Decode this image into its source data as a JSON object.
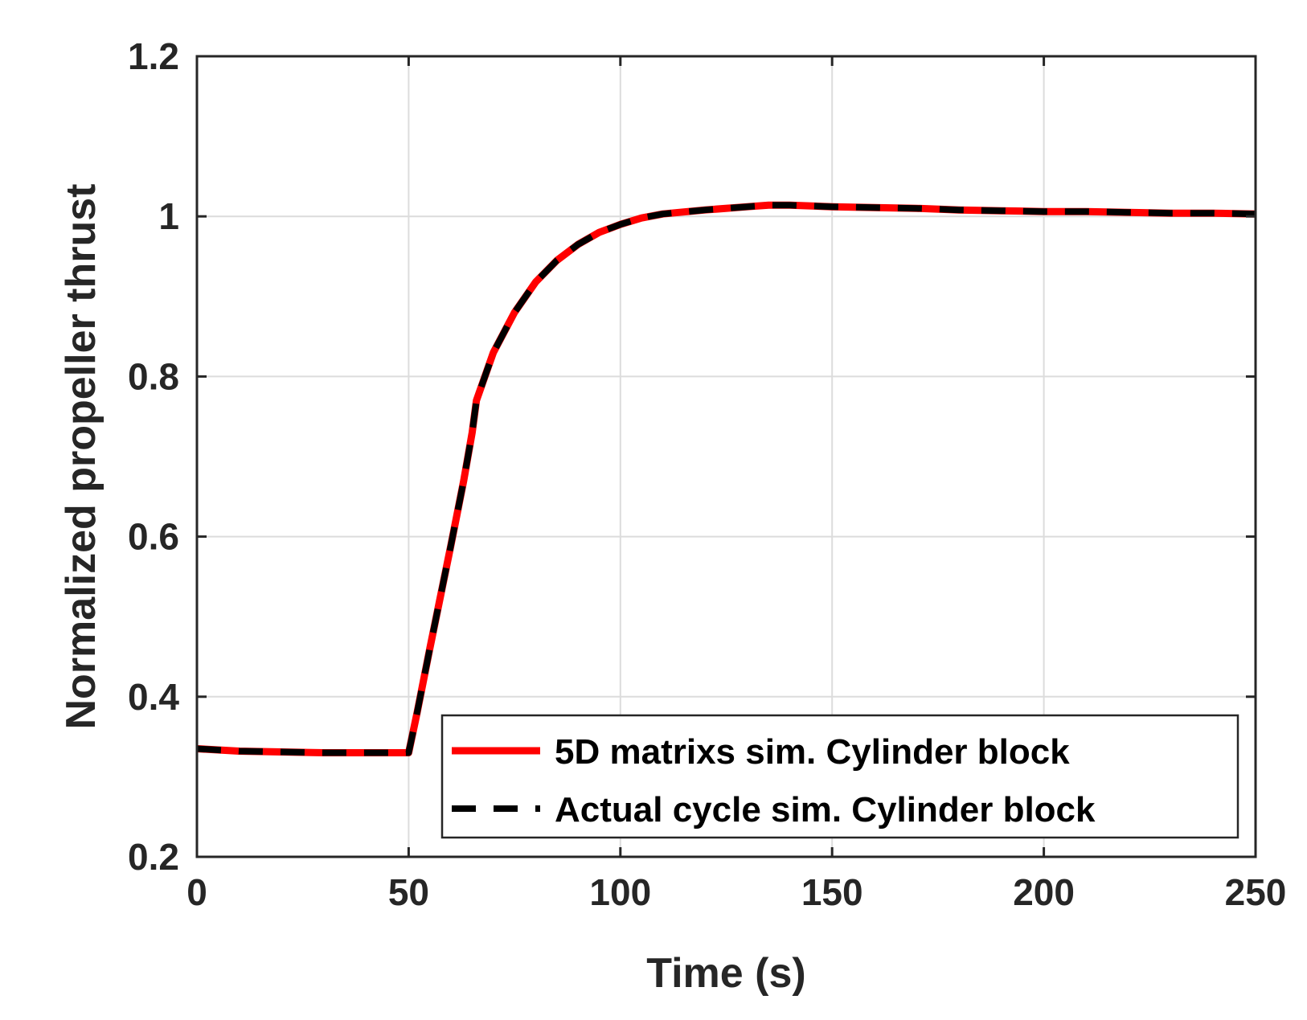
{
  "chart_data": {
    "type": "line",
    "title": "",
    "xlabel": "Time (s)",
    "ylabel": "Normalized propeller thrust",
    "xlim": [
      0,
      250
    ],
    "ylim": [
      0.2,
      1.2
    ],
    "xticks": [
      0,
      50,
      100,
      150,
      200,
      250
    ],
    "xtick_labels": [
      "0",
      "50",
      "100",
      "150",
      "200",
      "250"
    ],
    "yticks": [
      0.2,
      0.4,
      0.6,
      0.8,
      1.0,
      1.2
    ],
    "ytick_labels": [
      "0.2",
      "0.4",
      "0.6",
      "0.8",
      "1",
      "1.2"
    ],
    "grid": true,
    "legend_position": "bottom-right",
    "x": [
      0,
      10,
      20,
      30,
      40,
      50,
      52,
      55,
      60,
      63,
      65,
      66,
      70,
      75,
      80,
      85,
      90,
      95,
      100,
      105,
      110,
      120,
      130,
      135,
      140,
      150,
      160,
      170,
      180,
      190,
      200,
      210,
      220,
      230,
      240,
      250
    ],
    "series": [
      {
        "name": "5D matrixs sim. Cylinder block",
        "color": "#ff0000",
        "style": "solid",
        "values": [
          0.335,
          0.332,
          0.331,
          0.33,
          0.33,
          0.33,
          0.38,
          0.46,
          0.59,
          0.67,
          0.73,
          0.77,
          0.83,
          0.88,
          0.918,
          0.945,
          0.965,
          0.98,
          0.99,
          0.998,
          1.003,
          1.008,
          1.012,
          1.014,
          1.014,
          1.012,
          1.011,
          1.01,
          1.008,
          1.007,
          1.006,
          1.006,
          1.005,
          1.004,
          1.004,
          1.003
        ]
      },
      {
        "name": "Actual cycle sim. Cylinder block",
        "color": "#000000",
        "style": "dashed",
        "values": [
          0.335,
          0.332,
          0.331,
          0.33,
          0.33,
          0.33,
          0.38,
          0.46,
          0.59,
          0.67,
          0.73,
          0.77,
          0.83,
          0.88,
          0.918,
          0.945,
          0.965,
          0.98,
          0.99,
          0.998,
          1.003,
          1.008,
          1.012,
          1.014,
          1.014,
          1.012,
          1.011,
          1.01,
          1.008,
          1.007,
          1.006,
          1.006,
          1.005,
          1.004,
          1.004,
          1.003
        ]
      }
    ]
  }
}
